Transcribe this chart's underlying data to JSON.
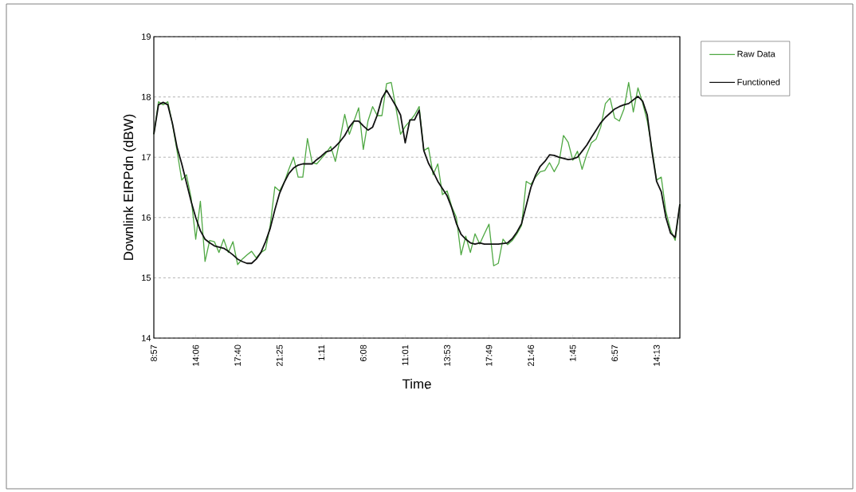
{
  "chart_data": {
    "type": "line",
    "xlabel": "Time",
    "ylabel": "Downlink EIRPdn (dBW)",
    "categories": [
      "8:57",
      null,
      null,
      null,
      null,
      null,
      null,
      null,
      null,
      "14:06",
      null,
      null,
      null,
      null,
      null,
      null,
      null,
      null,
      "17:40",
      null,
      null,
      null,
      null,
      null,
      null,
      null,
      null,
      "21:25",
      null,
      null,
      null,
      null,
      null,
      null,
      null,
      null,
      "1:11",
      null,
      null,
      null,
      null,
      null,
      null,
      null,
      null,
      "6:08",
      null,
      null,
      null,
      null,
      null,
      null,
      null,
      null,
      "11:01",
      null,
      null,
      null,
      null,
      null,
      null,
      null,
      null,
      "13:53",
      null,
      null,
      null,
      null,
      null,
      null,
      null,
      null,
      "17:49",
      null,
      null,
      null,
      null,
      null,
      null,
      null,
      null,
      "21:46",
      null,
      null,
      null,
      null,
      null,
      null,
      null,
      null,
      "1:45",
      null,
      null,
      null,
      null,
      null,
      null,
      null,
      null,
      "6:57",
      null,
      null,
      null,
      null,
      null,
      null,
      null,
      null,
      "14:13",
      null,
      null,
      null,
      null,
      null
    ],
    "series": [
      {
        "name": "Raw Data",
        "color": "#4fa843",
        "values": [
          17.38,
          17.92,
          17.87,
          17.92,
          17.55,
          17.1,
          16.62,
          16.71,
          16.33,
          15.64,
          16.27,
          15.27,
          15.62,
          15.6,
          15.42,
          15.64,
          15.42,
          15.6,
          15.22,
          15.31,
          15.38,
          15.44,
          15.33,
          15.42,
          15.47,
          15.87,
          16.51,
          16.44,
          16.58,
          16.8,
          17.0,
          16.67,
          16.67,
          17.31,
          16.91,
          16.89,
          16.98,
          17.07,
          17.18,
          16.93,
          17.3,
          17.71,
          17.38,
          17.6,
          17.82,
          17.13,
          17.6,
          17.84,
          17.69,
          17.69,
          18.22,
          18.24,
          17.82,
          17.38,
          17.51,
          17.6,
          17.7,
          17.84,
          17.11,
          17.16,
          16.71,
          16.89,
          16.38,
          16.44,
          16.18,
          16.0,
          15.38,
          15.69,
          15.42,
          15.73,
          15.56,
          15.73,
          15.89,
          15.2,
          15.24,
          15.64,
          15.55,
          15.62,
          15.73,
          15.87,
          16.6,
          16.55,
          16.67,
          16.76,
          16.78,
          16.91,
          16.76,
          16.9,
          17.36,
          17.25,
          16.95,
          17.1,
          16.8,
          17.05,
          17.24,
          17.3,
          17.5,
          17.89,
          17.98,
          17.65,
          17.6,
          17.8,
          18.24,
          17.75,
          18.15,
          17.9,
          17.6,
          17.15,
          16.62,
          16.67,
          16.1,
          15.8,
          15.62,
          16.22
        ]
      },
      {
        "name": "Functioned",
        "color": "#111111",
        "values": [
          17.38,
          17.87,
          17.91,
          17.87,
          17.56,
          17.16,
          16.89,
          16.58,
          16.27,
          16.0,
          15.78,
          15.64,
          15.58,
          15.53,
          15.51,
          15.49,
          15.44,
          15.38,
          15.31,
          15.27,
          15.24,
          15.24,
          15.31,
          15.42,
          15.6,
          15.82,
          16.13,
          16.4,
          16.58,
          16.73,
          16.82,
          16.87,
          16.89,
          16.89,
          16.89,
          16.96,
          17.02,
          17.09,
          17.11,
          17.18,
          17.26,
          17.36,
          17.5,
          17.6,
          17.6,
          17.52,
          17.45,
          17.5,
          17.7,
          17.98,
          18.11,
          17.98,
          17.85,
          17.7,
          17.24,
          17.62,
          17.62,
          17.78,
          17.11,
          16.9,
          16.76,
          16.6,
          16.48,
          16.36,
          16.16,
          15.9,
          15.72,
          15.64,
          15.58,
          15.56,
          15.58,
          15.56,
          15.56,
          15.56,
          15.56,
          15.57,
          15.58,
          15.65,
          15.76,
          15.9,
          16.2,
          16.5,
          16.7,
          16.85,
          16.93,
          17.04,
          17.03,
          17.0,
          16.98,
          16.96,
          16.97,
          17.0,
          17.1,
          17.2,
          17.33,
          17.45,
          17.57,
          17.66,
          17.73,
          17.8,
          17.84,
          17.87,
          17.89,
          17.95,
          18.01,
          17.93,
          17.7,
          17.1,
          16.6,
          16.43,
          16.0,
          15.74,
          15.67,
          16.22
        ]
      }
    ],
    "ylim": [
      14,
      19
    ],
    "yticks": [
      14,
      15,
      16,
      17,
      18,
      19
    ],
    "grid": "y",
    "legend": "top right"
  }
}
